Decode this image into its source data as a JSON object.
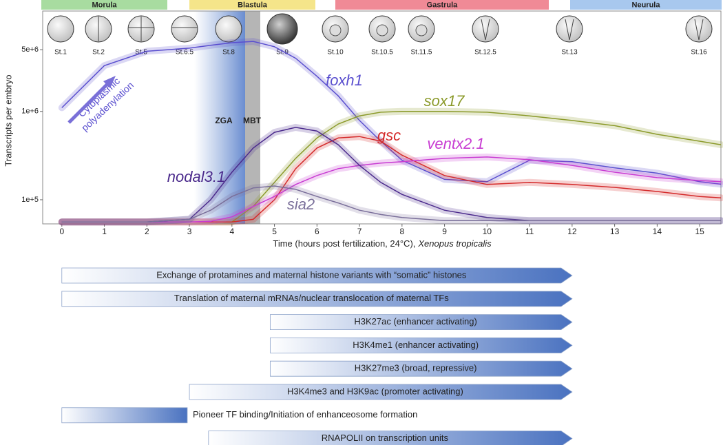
{
  "chart_data": {
    "type": "line",
    "stage_groups": [
      "Morula",
      "Blastula",
      "Gastrula",
      "Neurula"
    ],
    "stages": [
      "St.1",
      "St.2",
      "St.5",
      "St.6.5",
      "St.8",
      "St.9",
      "St.10",
      "St.10.5",
      "St.11.5",
      "St.12.5",
      "St.13",
      "St.16"
    ],
    "annotations": {
      "zga": "ZGA",
      "mbt": "MBT",
      "polyadenylation": [
        "Cytoplasmic",
        "polyadenylation"
      ]
    },
    "y_label": "Transcripts per embryo",
    "x_label": "Time (hours post fertilization, 24°C),",
    "x_label_species": "Xenopus tropicalis",
    "log_y": true,
    "x": [
      0,
      1,
      2,
      3,
      3.5,
      4,
      4.5,
      5,
      5.5,
      6,
      6.5,
      7,
      7.5,
      8,
      9,
      10,
      11,
      12,
      13,
      14,
      15,
      15.5
    ],
    "series": [
      {
        "name": "foxh1",
        "color": "#5a4fcf",
        "values": [
          1100000,
          3300000,
          4800000,
          5200000,
          5600000,
          6000000,
          6200000,
          5400000,
          4000000,
          2500000,
          1500000,
          790000,
          460000,
          280000,
          170000,
          160000,
          280000,
          270000,
          230000,
          200000,
          160000,
          150000
        ]
      },
      {
        "name": "sox17",
        "color": "#8b9a2a",
        "values": [
          56000,
          56000,
          56000,
          56000,
          56000,
          56000,
          84000,
          157000,
          294000,
          500000,
          720000,
          890000,
          980000,
          1000000,
          1000000,
          980000,
          890000,
          790000,
          690000,
          550000,
          460000,
          420000
        ]
      },
      {
        "name": "gsc",
        "color": "#d42a2a",
        "values": [
          56000,
          56000,
          56000,
          56000,
          56000,
          56000,
          60000,
          100000,
          225000,
          385000,
          500000,
          520000,
          460000,
          320000,
          188000,
          149000,
          157000,
          149000,
          138000,
          124000,
          109000,
          105000
        ]
      },
      {
        "name": "ventx2.1",
        "color": "#c83cd2",
        "values": [
          56000,
          56000,
          56000,
          56000,
          57000,
          64000,
          84000,
          109000,
          149000,
          188000,
          225000,
          245000,
          260000,
          270000,
          294000,
          305000,
          284000,
          245000,
          205000,
          178000,
          165000,
          160000
        ]
      },
      {
        "name": "nodal3.1",
        "color": "#4b2a8c",
        "values": [
          56000,
          56000,
          56000,
          60000,
          100000,
          205000,
          385000,
          580000,
          660000,
          600000,
          420000,
          245000,
          157000,
          115000,
          76000,
          63000,
          58000,
          58000,
          58000,
          58000,
          58000,
          58000
        ]
      },
      {
        "name": "sia2",
        "color": "#7a6f9a",
        "values": [
          56000,
          56000,
          56000,
          60000,
          76000,
          109000,
          136000,
          143000,
          131000,
          109000,
          92000,
          76000,
          68000,
          63000,
          58000,
          58000,
          58000,
          58000,
          58000,
          58000,
          58000,
          58000
        ]
      }
    ],
    "xlim": [
      -0.45,
      15.5
    ],
    "xticks": [
      0,
      1,
      2,
      3,
      4,
      5,
      6,
      7,
      8,
      9,
      10,
      11,
      12,
      13,
      14,
      15
    ],
    "ylim": [
      53300,
      13700000
    ],
    "yticks": [
      {
        "value": 100000,
        "label": "1e+5"
      },
      {
        "value": 1000000,
        "label": "1e+6"
      },
      {
        "value": 5000000,
        "label": "5e+6"
      }
    ]
  },
  "processes": [
    {
      "label": "Exchange of protamines and maternal histone variants with “somatic” histones",
      "from": 0,
      "to": 12,
      "arrow": true
    },
    {
      "label": "Translation of maternal mRNAs/nuclear translocation of maternal TFs",
      "from": 0,
      "to": 12,
      "arrow": true
    },
    {
      "label": "H3K27ac (enhancer activating)",
      "from": 4.9,
      "to": 12,
      "arrow": true
    },
    {
      "label": "H3K4me1 (enhancer activating)",
      "from": 4.9,
      "to": 12,
      "arrow": true
    },
    {
      "label": "H3K27me3 (broad, repressive)",
      "from": 4.9,
      "to": 12,
      "arrow": true
    },
    {
      "label": "H3K4me3 and H3K9ac (promoter activating)",
      "from": 3,
      "to": 12,
      "arrow": true
    },
    {
      "label": "Pioneer TF binding/Initiation of enhanceosome formation",
      "from": 0,
      "to": 2.95,
      "arrow": false
    },
    {
      "label": "RNAPOLII on transcription units",
      "from": 3.45,
      "to": 12,
      "arrow": true
    }
  ]
}
